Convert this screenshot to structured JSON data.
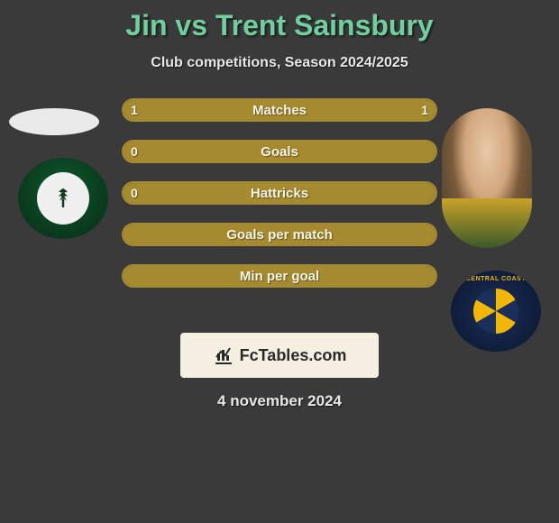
{
  "header": {
    "title": "Jin vs Trent Sainsbury",
    "title_color": "#6fcf9e",
    "subtitle": "Club competitions, Season 2024/2025"
  },
  "colors": {
    "background": "#3a3a3a",
    "bar_fill": "#a58a2f",
    "bar_border": "#a58a2f",
    "bar_text": "#f7f4e8",
    "watermark_bg": "#f5f0e1"
  },
  "stats": [
    {
      "label": "Matches",
      "left_val": "1",
      "right_val": "1",
      "left_pct": 50,
      "right_pct": 50
    },
    {
      "label": "Goals",
      "left_val": "0",
      "right_val": "",
      "left_pct": 100,
      "right_pct": 0
    },
    {
      "label": "Hattricks",
      "left_val": "0",
      "right_val": "",
      "left_pct": 100,
      "right_pct": 0
    },
    {
      "label": "Goals per match",
      "left_val": "",
      "right_val": "",
      "left_pct": 100,
      "right_pct": 0
    },
    {
      "label": "Min per goal",
      "left_val": "",
      "right_val": "",
      "left_pct": 100,
      "right_pct": 0
    }
  ],
  "left_player": {
    "name": "Jin",
    "club_name": "Al-Ahli Saudi",
    "club_primary": "#0d5a2a"
  },
  "right_player": {
    "name": "Trent Sainsbury",
    "club_name": "Central Coast Mariners",
    "club_primary": "#1a2f5a",
    "club_accent": "#f2b705"
  },
  "watermark": {
    "text": "FcTables.com"
  },
  "date": "4 november 2024"
}
